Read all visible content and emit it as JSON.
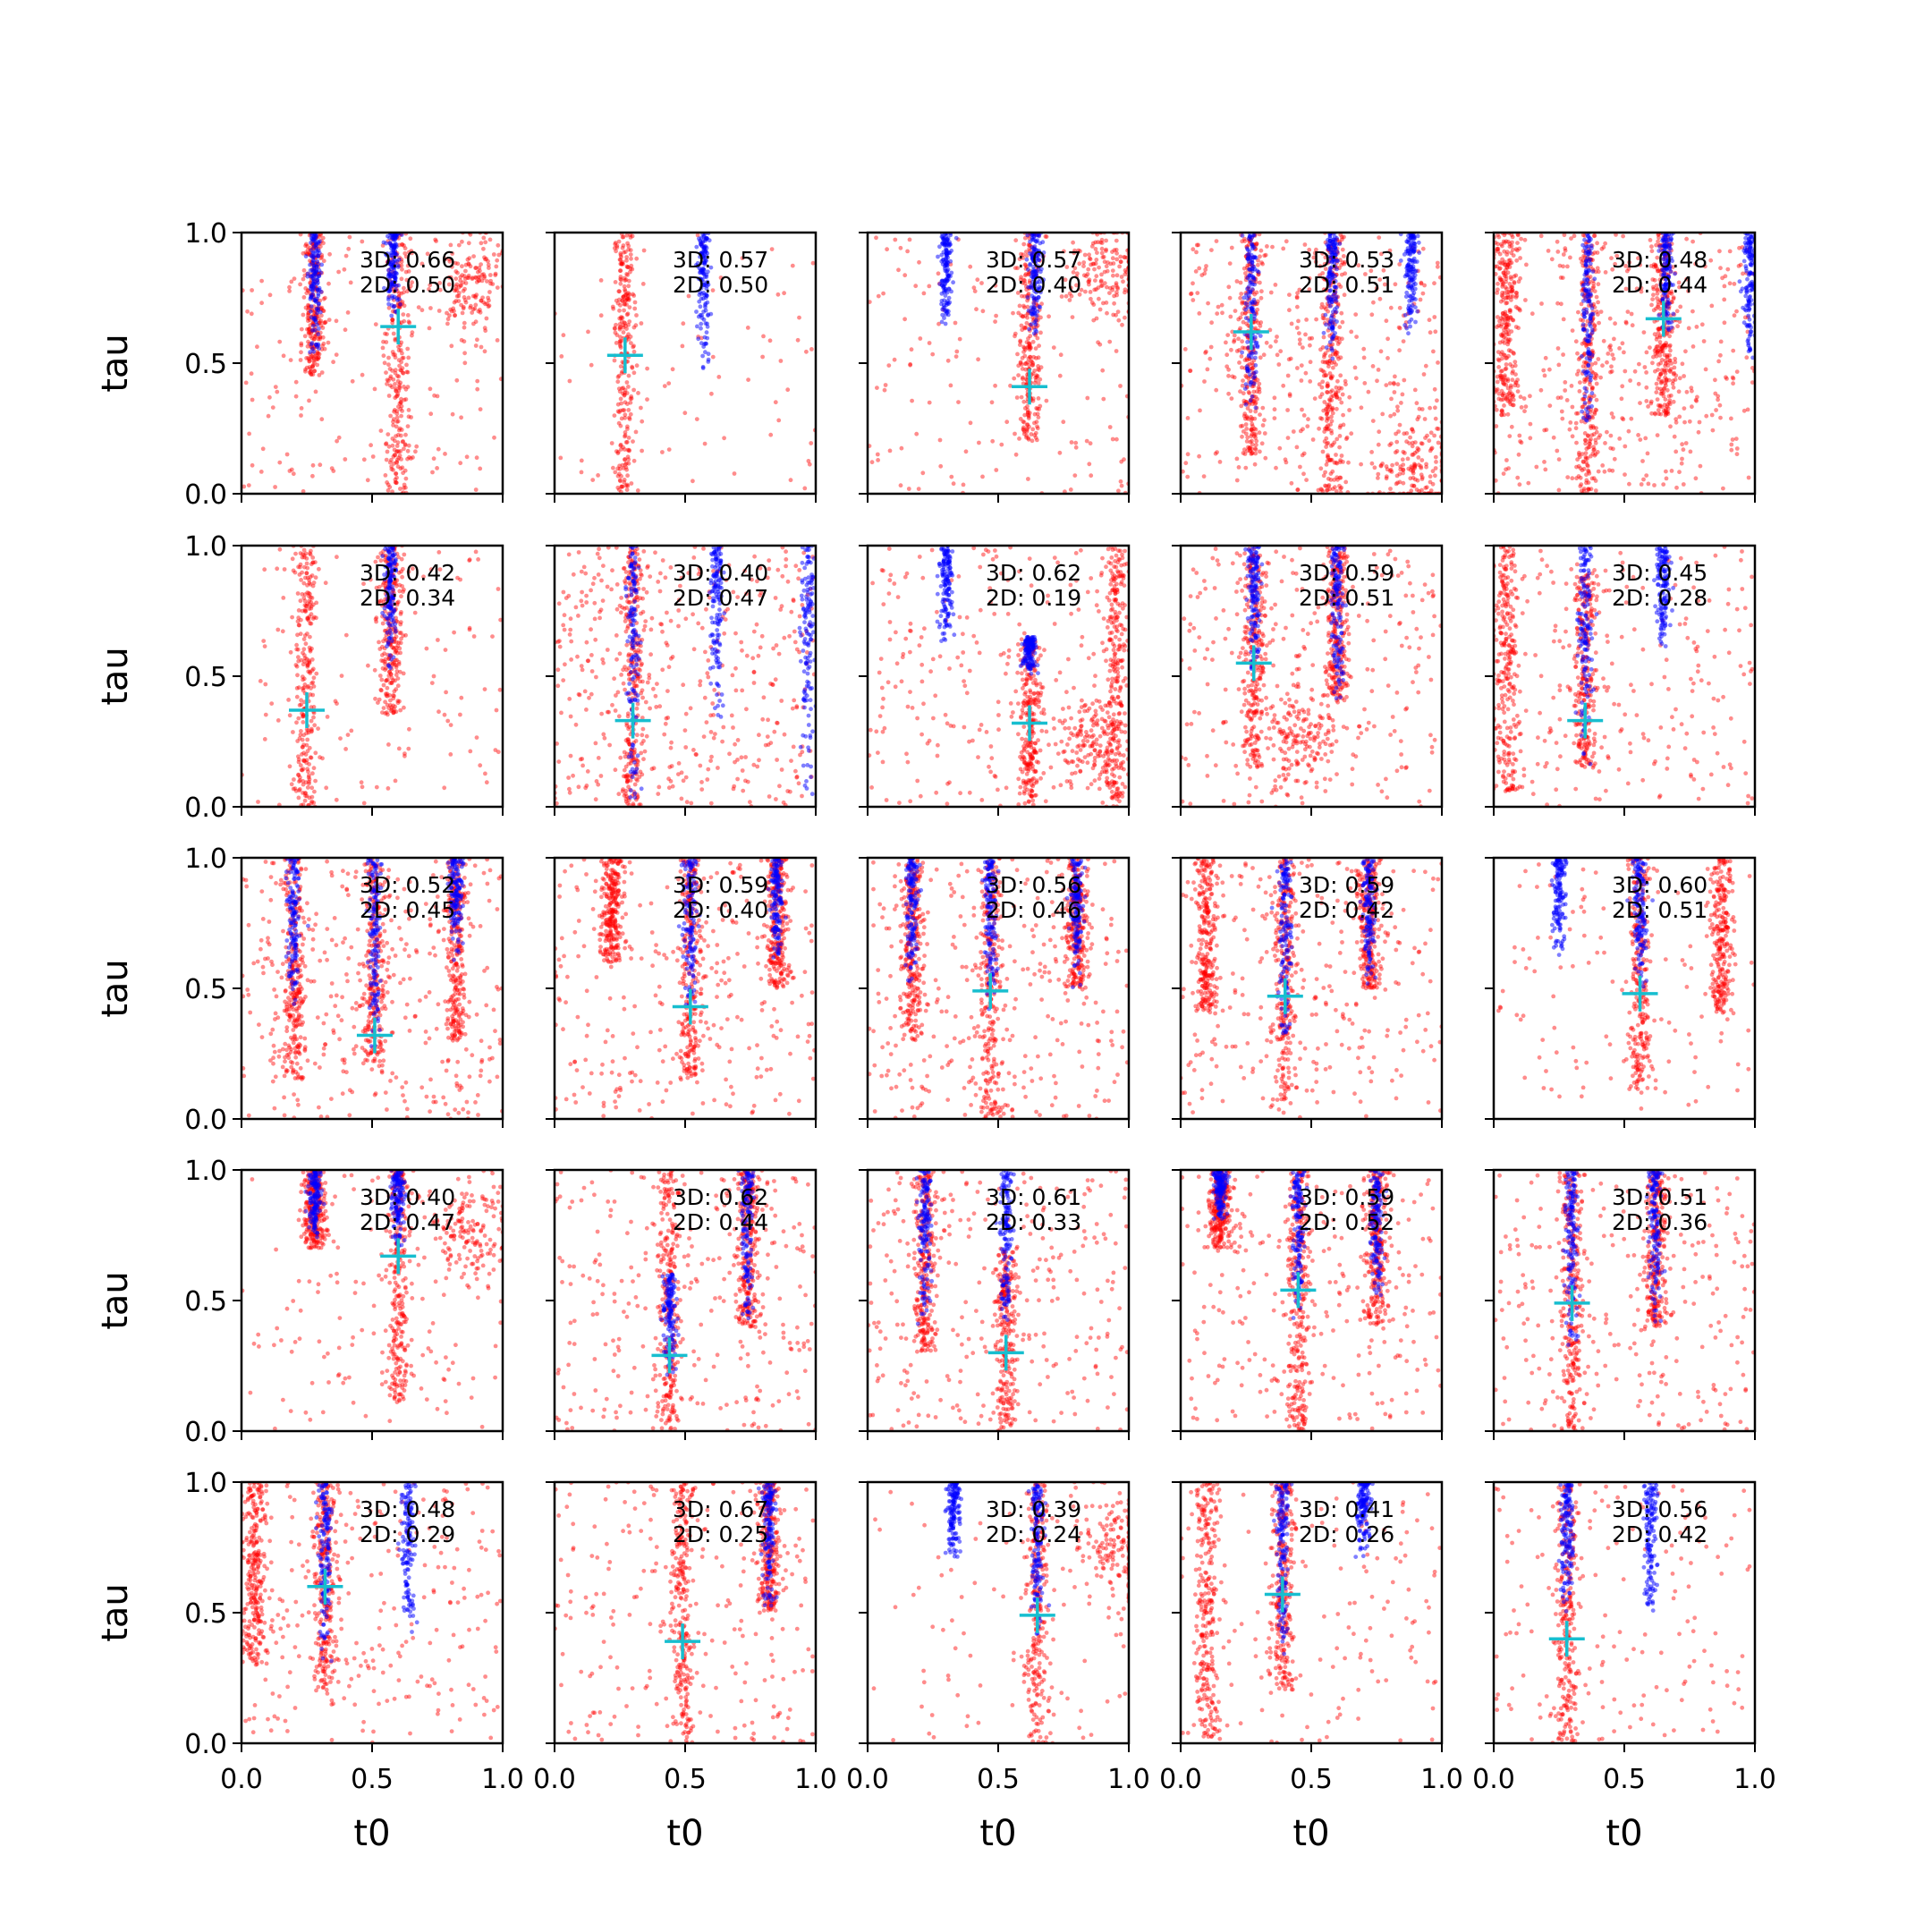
{
  "chart_data": {
    "type": "scatter",
    "grid": false,
    "rows": 5,
    "cols": 5,
    "xlabel": "t0",
    "ylabel": "tau",
    "xlim": [
      0.0,
      1.0
    ],
    "ylim": [
      0.0,
      1.0
    ],
    "xticks": [
      "0.0",
      "0.5",
      "1.0"
    ],
    "yticks": [
      "0.0",
      "0.5",
      "1.0"
    ],
    "colors": {
      "sample_red": "#ff0000",
      "sample_blue": "#0000ff",
      "marker": "#17becf"
    },
    "panels": [
      {
        "r": 0,
        "c": 0,
        "line3d": "3D: 0.66",
        "line2d": "2D: 0.50",
        "marker": [
          0.6,
          0.64
        ],
        "red_bands": [
          [
            0.6,
            0.0,
            1.0
          ],
          [
            0.28,
            0.45,
            1.0
          ]
        ],
        "red_clusters": [
          [
            0.88,
            0.82
          ]
        ],
        "blue_bands": [
          [
            0.28,
            0.5,
            1.0
          ],
          [
            0.58,
            0.65,
            1.0
          ]
        ],
        "scatter": 0.3
      },
      {
        "r": 0,
        "c": 1,
        "line3d": "3D: 0.57",
        "line2d": "2D: 0.50",
        "marker": [
          0.27,
          0.53
        ],
        "red_bands": [
          [
            0.27,
            0.0,
            1.0
          ]
        ],
        "red_clusters": [],
        "blue_bands": [
          [
            0.57,
            0.45,
            1.0
          ]
        ],
        "scatter": 0.1
      },
      {
        "r": 0,
        "c": 2,
        "line3d": "3D: 0.57",
        "line2d": "2D: 0.40",
        "marker": [
          0.62,
          0.41
        ],
        "red_bands": [
          [
            0.62,
            0.2,
            1.0
          ]
        ],
        "red_clusters": [
          [
            0.92,
            0.85
          ]
        ],
        "blue_bands": [
          [
            0.3,
            0.6,
            1.0
          ],
          [
            0.64,
            0.6,
            1.0
          ]
        ],
        "scatter": 0.3
      },
      {
        "r": 0,
        "c": 3,
        "line3d": "3D: 0.53",
        "line2d": "2D: 0.51",
        "marker": [
          0.27,
          0.62
        ],
        "red_bands": [
          [
            0.27,
            0.15,
            1.0
          ],
          [
            0.58,
            0.0,
            1.0
          ]
        ],
        "red_clusters": [
          [
            0.9,
            0.1
          ]
        ],
        "blue_bands": [
          [
            0.27,
            0.3,
            1.0
          ],
          [
            0.58,
            0.5,
            1.0
          ],
          [
            0.88,
            0.6,
            1.0
          ]
        ],
        "scatter": 0.8
      },
      {
        "r": 0,
        "c": 4,
        "line3d": "3D: 0.48",
        "line2d": "2D: 0.44",
        "marker": [
          0.65,
          0.67
        ],
        "red_bands": [
          [
            0.05,
            0.3,
            1.0
          ],
          [
            0.36,
            0.0,
            1.0
          ],
          [
            0.65,
            0.3,
            1.0
          ]
        ],
        "red_clusters": [],
        "blue_bands": [
          [
            0.36,
            0.2,
            1.0
          ],
          [
            0.66,
            0.6,
            1.0
          ],
          [
            0.98,
            0.5,
            1.0
          ]
        ],
        "scatter": 0.9
      },
      {
        "r": 1,
        "c": 0,
        "line3d": "3D: 0.42",
        "line2d": "2D: 0.34",
        "marker": [
          0.25,
          0.37
        ],
        "red_bands": [
          [
            0.25,
            0.0,
            1.0
          ],
          [
            0.57,
            0.35,
            1.0
          ]
        ],
        "red_clusters": [],
        "blue_bands": [
          [
            0.57,
            0.5,
            1.0
          ]
        ],
        "scatter": 0.2
      },
      {
        "r": 1,
        "c": 1,
        "line3d": "3D: 0.40",
        "line2d": "2D: 0.47",
        "marker": [
          0.3,
          0.33
        ],
        "red_bands": [
          [
            0.3,
            0.0,
            1.0
          ]
        ],
        "red_clusters": [],
        "blue_bands": [
          [
            0.3,
            0.0,
            1.0
          ],
          [
            0.62,
            0.3,
            1.0
          ],
          [
            0.97,
            0.0,
            1.0
          ]
        ],
        "scatter": 1.0
      },
      {
        "r": 1,
        "c": 2,
        "line3d": "3D: 0.62",
        "line2d": "2D: 0.19",
        "marker": [
          0.62,
          0.32
        ],
        "red_bands": [
          [
            0.62,
            0.0,
            0.65
          ],
          [
            0.95,
            0.0,
            1.0
          ]
        ],
        "red_clusters": [
          [
            0.85,
            0.25
          ]
        ],
        "blue_bands": [
          [
            0.3,
            0.6,
            1.0
          ],
          [
            0.62,
            0.5,
            0.65
          ]
        ],
        "scatter": 0.5
      },
      {
        "r": 1,
        "c": 3,
        "line3d": "3D: 0.59",
        "line2d": "2D: 0.51",
        "marker": [
          0.28,
          0.55
        ],
        "red_bands": [
          [
            0.28,
            0.15,
            1.0
          ],
          [
            0.6,
            0.4,
            1.0
          ]
        ],
        "red_clusters": [
          [
            0.45,
            0.25
          ]
        ],
        "blue_bands": [
          [
            0.28,
            0.5,
            1.0
          ],
          [
            0.6,
            0.4,
            1.0
          ]
        ],
        "scatter": 0.6
      },
      {
        "r": 1,
        "c": 4,
        "line3d": "3D: 0.45",
        "line2d": "2D: 0.28",
        "marker": [
          0.35,
          0.33
        ],
        "red_bands": [
          [
            0.05,
            0.05,
            1.0
          ],
          [
            0.35,
            0.15,
            0.9
          ]
        ],
        "red_clusters": [],
        "blue_bands": [
          [
            0.35,
            0.15,
            1.0
          ],
          [
            0.65,
            0.6,
            1.0
          ]
        ],
        "scatter": 0.5
      },
      {
        "r": 2,
        "c": 0,
        "line3d": "3D: 0.52",
        "line2d": "2D: 0.45",
        "marker": [
          0.51,
          0.32
        ],
        "red_bands": [
          [
            0.2,
            0.15,
            1.0
          ],
          [
            0.51,
            0.2,
            1.0
          ],
          [
            0.82,
            0.3,
            1.0
          ]
        ],
        "red_clusters": [],
        "blue_bands": [
          [
            0.2,
            0.4,
            1.0
          ],
          [
            0.51,
            0.25,
            1.0
          ],
          [
            0.82,
            0.6,
            1.0
          ]
        ],
        "scatter": 0.8
      },
      {
        "r": 2,
        "c": 1,
        "line3d": "3D: 0.59",
        "line2d": "2D: 0.40",
        "marker": [
          0.52,
          0.43
        ],
        "red_bands": [
          [
            0.52,
            0.15,
            1.0
          ],
          [
            0.85,
            0.5,
            1.0
          ],
          [
            0.22,
            0.6,
            1.0
          ]
        ],
        "red_clusters": [],
        "blue_bands": [
          [
            0.52,
            0.4,
            1.0
          ],
          [
            0.85,
            0.6,
            1.0
          ]
        ],
        "scatter": 0.6
      },
      {
        "r": 2,
        "c": 2,
        "line3d": "3D: 0.56",
        "line2d": "2D: 0.46",
        "marker": [
          0.47,
          0.49
        ],
        "red_bands": [
          [
            0.47,
            0.0,
            1.0
          ],
          [
            0.17,
            0.3,
            1.0
          ],
          [
            0.8,
            0.5,
            1.0
          ]
        ],
        "red_clusters": [],
        "blue_bands": [
          [
            0.17,
            0.5,
            1.0
          ],
          [
            0.47,
            0.4,
            1.0
          ],
          [
            0.8,
            0.5,
            1.0
          ]
        ],
        "scatter": 0.7
      },
      {
        "r": 2,
        "c": 3,
        "line3d": "3D: 0.59",
        "line2d": "2D: 0.42",
        "marker": [
          0.4,
          0.47
        ],
        "red_bands": [
          [
            0.4,
            0.05,
            1.0
          ],
          [
            0.1,
            0.4,
            1.0
          ],
          [
            0.72,
            0.5,
            1.0
          ]
        ],
        "red_clusters": [],
        "blue_bands": [
          [
            0.4,
            0.3,
            1.0
          ],
          [
            0.72,
            0.5,
            1.0
          ]
        ],
        "scatter": 0.6
      },
      {
        "r": 2,
        "c": 4,
        "line3d": "3D: 0.60",
        "line2d": "2D: 0.51",
        "marker": [
          0.56,
          0.48
        ],
        "red_bands": [
          [
            0.56,
            0.1,
            1.0
          ],
          [
            0.87,
            0.4,
            1.0
          ]
        ],
        "red_clusters": [],
        "blue_bands": [
          [
            0.25,
            0.6,
            1.0
          ],
          [
            0.56,
            0.5,
            1.0
          ]
        ],
        "scatter": 0.2
      },
      {
        "r": 3,
        "c": 0,
        "line3d": "3D: 0.40",
        "line2d": "2D: 0.47",
        "marker": [
          0.6,
          0.67
        ],
        "red_bands": [
          [
            0.6,
            0.1,
            1.0
          ],
          [
            0.28,
            0.7,
            1.0
          ]
        ],
        "red_clusters": [
          [
            0.88,
            0.75
          ]
        ],
        "blue_bands": [
          [
            0.28,
            0.7,
            1.0
          ],
          [
            0.6,
            0.7,
            1.0
          ]
        ],
        "scatter": 0.25
      },
      {
        "r": 3,
        "c": 1,
        "line3d": "3D: 0.62",
        "line2d": "2D: 0.44",
        "marker": [
          0.44,
          0.29
        ],
        "red_bands": [
          [
            0.44,
            0.0,
            1.0
          ],
          [
            0.74,
            0.4,
            1.0
          ]
        ],
        "red_clusters": [],
        "blue_bands": [
          [
            0.44,
            0.2,
            0.6
          ],
          [
            0.74,
            0.4,
            1.0
          ]
        ],
        "scatter": 0.6
      },
      {
        "r": 3,
        "c": 2,
        "line3d": "3D: 0.61",
        "line2d": "2D: 0.33",
        "marker": [
          0.53,
          0.3
        ],
        "red_bands": [
          [
            0.53,
            0.0,
            0.7
          ],
          [
            0.22,
            0.3,
            1.0
          ]
        ],
        "red_clusters": [],
        "blue_bands": [
          [
            0.22,
            0.4,
            1.0
          ],
          [
            0.53,
            0.4,
            1.0
          ]
        ],
        "scatter": 0.6
      },
      {
        "r": 3,
        "c": 3,
        "line3d": "3D: 0.59",
        "line2d": "2D: 0.52",
        "marker": [
          0.45,
          0.54
        ],
        "red_bands": [
          [
            0.45,
            0.0,
            1.0
          ],
          [
            0.75,
            0.4,
            1.0
          ],
          [
            0.15,
            0.7,
            1.0
          ]
        ],
        "red_clusters": [],
        "blue_bands": [
          [
            0.45,
            0.4,
            1.0
          ],
          [
            0.75,
            0.5,
            1.0
          ],
          [
            0.15,
            0.8,
            1.0
          ]
        ],
        "scatter": 0.6
      },
      {
        "r": 3,
        "c": 4,
        "line3d": "3D: 0.51",
        "line2d": "2D: 0.36",
        "marker": [
          0.3,
          0.49
        ],
        "red_bands": [
          [
            0.3,
            0.0,
            1.0
          ],
          [
            0.62,
            0.4,
            1.0
          ]
        ],
        "red_clusters": [],
        "blue_bands": [
          [
            0.3,
            0.3,
            1.0
          ],
          [
            0.62,
            0.4,
            1.0
          ]
        ],
        "scatter": 0.6
      },
      {
        "r": 4,
        "c": 0,
        "line3d": "3D: 0.48",
        "line2d": "2D: 0.29",
        "marker": [
          0.32,
          0.6
        ],
        "red_bands": [
          [
            0.32,
            0.2,
            1.0
          ],
          [
            0.05,
            0.3,
            1.0
          ]
        ],
        "red_clusters": [],
        "blue_bands": [
          [
            0.32,
            0.3,
            1.0
          ],
          [
            0.64,
            0.4,
            1.0
          ]
        ],
        "scatter": 0.6
      },
      {
        "r": 4,
        "c": 1,
        "line3d": "3D: 0.67",
        "line2d": "2D: 0.25",
        "marker": [
          0.49,
          0.39
        ],
        "red_bands": [
          [
            0.49,
            0.0,
            1.0
          ],
          [
            0.82,
            0.5,
            1.0
          ]
        ],
        "red_clusters": [],
        "blue_bands": [
          [
            0.82,
            0.5,
            1.0
          ]
        ],
        "scatter": 0.5
      },
      {
        "r": 4,
        "c": 2,
        "line3d": "3D: 0.39",
        "line2d": "2D: 0.24",
        "marker": [
          0.65,
          0.49
        ],
        "red_bands": [
          [
            0.65,
            0.0,
            1.0
          ]
        ],
        "red_clusters": [
          [
            0.95,
            0.75
          ]
        ],
        "blue_bands": [
          [
            0.33,
            0.7,
            1.0
          ],
          [
            0.65,
            0.4,
            1.0
          ]
        ],
        "scatter": 0.1
      },
      {
        "r": 4,
        "c": 3,
        "line3d": "3D: 0.41",
        "line2d": "2D: 0.26",
        "marker": [
          0.39,
          0.57
        ],
        "red_bands": [
          [
            0.39,
            0.2,
            1.0
          ],
          [
            0.1,
            0.0,
            1.0
          ]
        ],
        "red_clusters": [],
        "blue_bands": [
          [
            0.39,
            0.3,
            1.0
          ],
          [
            0.7,
            0.7,
            1.0
          ]
        ],
        "scatter": 0.3
      },
      {
        "r": 4,
        "c": 4,
        "line3d": "3D: 0.56",
        "line2d": "2D: 0.42",
        "marker": [
          0.28,
          0.4
        ],
        "red_bands": [
          [
            0.28,
            0.0,
            1.0
          ]
        ],
        "red_clusters": [],
        "blue_bands": [
          [
            0.28,
            0.5,
            1.0
          ],
          [
            0.6,
            0.5,
            1.0
          ]
        ],
        "scatter": 0.3
      }
    ]
  }
}
